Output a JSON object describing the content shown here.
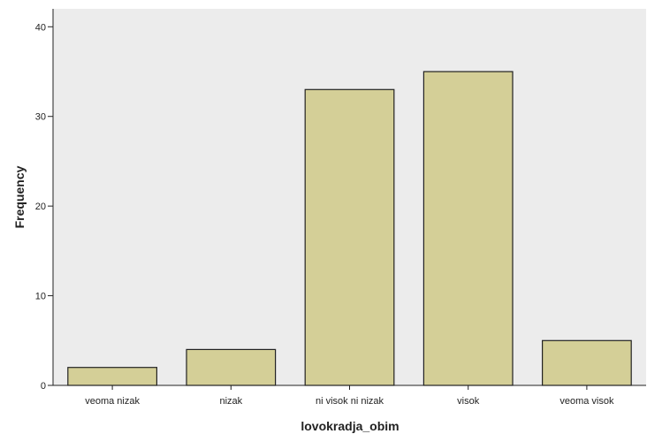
{
  "chart_data": {
    "type": "bar",
    "title": "",
    "xlabel": "lovokradja_obim",
    "ylabel": "Frequency",
    "categories": [
      "veoma nizak",
      "nizak",
      "ni visok ni nizak",
      "visok",
      "veoma visok"
    ],
    "values": [
      2,
      4,
      33,
      35,
      5
    ],
    "ylim": [
      0,
      42
    ],
    "yticks": [
      0,
      10,
      20,
      30,
      40
    ],
    "grid": false,
    "colors": {
      "plot_background": "#ececec",
      "bar_fill": "#d4cf97",
      "bar_stroke": "#222222"
    }
  }
}
